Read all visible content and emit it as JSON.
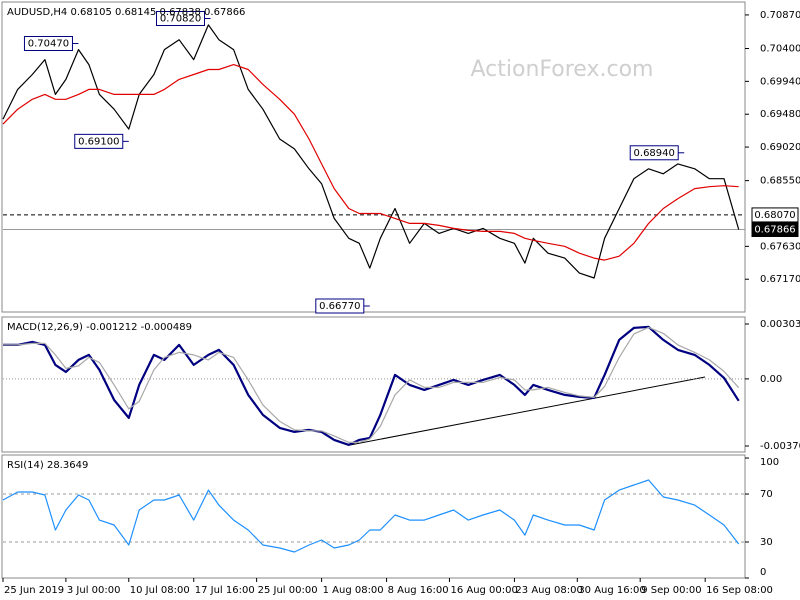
{
  "chart_data": [
    {
      "type": "line",
      "title": "AUDUSD,H4  0.68105 0.68145 0.67838 0.67866",
      "watermark": "ActionForex.com",
      "x": [
        0,
        7,
        14,
        20,
        25,
        30,
        36,
        41,
        46,
        53,
        60,
        65,
        72,
        77,
        84,
        91,
        98,
        103,
        110,
        117,
        124,
        132,
        139,
        146,
        152,
        158,
        165,
        170,
        175,
        180,
        187,
        194,
        201,
        208,
        215,
        222,
        229,
        237,
        244,
        249,
        253,
        260,
        268,
        275,
        282,
        287,
        294,
        301,
        308,
        315,
        322,
        330,
        337,
        344,
        351
      ],
      "xlim": [
        0,
        354
      ],
      "ylim": [
        0.66711,
        0.71037
      ],
      "yticks": [
        {
          "value": 0.7087,
          "label": "0.70870"
        },
        {
          "value": 0.704,
          "label": "0.70400"
        },
        {
          "value": 0.6994,
          "label": "0.69940"
        },
        {
          "value": 0.6948,
          "label": "0.69480"
        },
        {
          "value": 0.6902,
          "label": "0.69020"
        },
        {
          "value": 0.6855,
          "label": "0.68550"
        },
        {
          "value": 0.6763,
          "label": "0.67630"
        },
        {
          "value": 0.6717,
          "label": "0.67170"
        }
      ],
      "hlines": [
        {
          "value": 0.6807,
          "label": "0.68070",
          "style": "dashed"
        },
        {
          "value": 0.67866,
          "label": "0.67866",
          "style": "solid"
        }
      ],
      "annotations": [
        {
          "x": 36,
          "value": 0.7047,
          "label": "0.70470"
        },
        {
          "x": 99,
          "value": 0.7082,
          "label": "0.70820"
        },
        {
          "x": 60,
          "value": 0.691,
          "label": "0.69100"
        },
        {
          "x": 325,
          "value": 0.6894,
          "label": "0.68940"
        },
        {
          "x": 175,
          "value": 0.6677,
          "label": "0.66770"
        }
      ],
      "series": [
        {
          "color": "#000000",
          "values": [
            0.69411,
            0.69828,
            0.70036,
            0.70245,
            0.69758,
            0.69967,
            0.70384,
            0.70175,
            0.69758,
            0.6955,
            0.69272,
            0.69758,
            0.70036,
            0.70384,
            0.70523,
            0.70245,
            0.70731,
            0.70523,
            0.70384,
            0.69828,
            0.6955,
            0.69133,
            0.68994,
            0.68716,
            0.68507,
            0.68021,
            0.67743,
            0.67673,
            0.67326,
            0.67743,
            0.6816,
            0.67673,
            0.67951,
            0.67812,
            0.67882,
            0.67812,
            0.67882,
            0.67743,
            0.67673,
            0.67395,
            0.67743,
            0.67534,
            0.67465,
            0.67256,
            0.67187,
            0.67743,
            0.6816,
            0.68577,
            0.68716,
            0.68646,
            0.68785,
            0.68716,
            0.68577,
            0.68577,
            0.67866
          ]
        },
        {
          "color": "#e00000",
          "values": [
            0.69341,
            0.6955,
            0.69689,
            0.69758,
            0.69689,
            0.69689,
            0.69758,
            0.69828,
            0.69828,
            0.69758,
            0.69758,
            0.69758,
            0.69758,
            0.69828,
            0.69967,
            0.70036,
            0.70106,
            0.70106,
            0.70175,
            0.70106,
            0.69897,
            0.69689,
            0.6948,
            0.69133,
            0.68785,
            0.68438,
            0.6816,
            0.6809,
            0.6809,
            0.6809,
            0.68021,
            0.67951,
            0.67951,
            0.67923,
            0.67882,
            0.67854,
            0.6784,
            0.6784,
            0.67812,
            0.67743,
            0.67715,
            0.67673,
            0.67631,
            0.67534,
            0.67465,
            0.67437,
            0.67492,
            0.67673,
            0.67951,
            0.6816,
            0.68299,
            0.68438,
            0.68465,
            0.68479,
            0.68465
          ]
        }
      ]
    },
    {
      "type": "line",
      "title": "MACD(12,26,9) -0.001212 -0.000489",
      "ylim": [
        -0.004037,
        0.003362
      ],
      "yticks": [
        0.003031,
        {
          "value": 0,
          "label": "0.00"
        },
        -0.003706
      ],
      "levels": [
        0
      ],
      "series": [
        {
          "color": "#000080",
          "values": [
            0.001877,
            0.001877,
            0.002042,
            0.001877,
            0.000773,
            0.000386,
            0.001049,
            0.001325,
            0.000497,
            -0.001159,
            -0.002153,
            -0.000331,
            0.001325,
            0.001049,
            0.001877,
            0.000773,
            0.001325,
            0.001601,
            0.000773,
            -0.000883,
            -0.001987,
            -0.002705,
            -0.002926,
            -0.002815,
            -0.002926,
            -0.003367,
            -0.003643,
            -0.003367,
            -0.003257,
            -0.001987,
            0.000221,
            -0.000331,
            -0.000607,
            -0.000331,
            -5.5e-05,
            -0.000331,
            -5.5e-05,
            0.000221,
            -0.000331,
            -0.000883,
            -0.000331,
            -0.000607,
            -0.000883,
            -0.000994,
            -0.001049,
            0.000221,
            0.002153,
            0.002815,
            0.00287,
            0.002153,
            0.001601,
            0.001325,
            0.000773,
            5.5e-05,
            -0.001212
          ]
        },
        {
          "color": "#a8a8a8",
          "values": [
            0.001877,
            0.001877,
            0.00196,
            0.00196,
            0.001325,
            0.00058,
            0.000718,
            0.001187,
            0.000911,
            -0.000331,
            -0.001656,
            -0.001242,
            0.000497,
            0.001187,
            0.001463,
            0.001325,
            0.001049,
            0.001463,
            0.001187,
            -5.5e-05,
            -0.001435,
            -0.002346,
            -0.002816,
            -0.00287,
            -0.00287,
            -0.003147,
            -0.003505,
            -0.003505,
            -0.003312,
            -0.002622,
            -0.000883,
            -5.5e-05,
            -0.000469,
            -0.000469,
            -0.000193,
            -0.000193,
            -0.000193,
            8.3e-05,
            -5.5e-05,
            -0.000607,
            -0.000607,
            -0.000469,
            -0.000745,
            -0.000939,
            -0.001022,
            -0.000414,
            0.001187,
            0.002484,
            0.002843,
            0.002512,
            0.001877,
            0.001463,
            0.001049,
            0.000414,
            -0.000489
          ]
        }
      ]
    },
    {
      "type": "line",
      "title": "RSI(14) 28.3649",
      "ylim": [
        0,
        101.7
      ],
      "yticks": [
        100,
        70,
        30,
        0
      ],
      "levels": [
        70,
        30
      ],
      "xticks": [
        {
          "value": 0,
          "label": "25 Jun 2019"
        },
        {
          "value": 30,
          "label": "3 Jul 00:00"
        },
        {
          "value": 60,
          "label": "10 Jul 08:00"
        },
        {
          "value": 91,
          "label": "17 Jul 16:00"
        },
        {
          "value": 121,
          "label": "25 Jul 00:00"
        },
        {
          "value": 152,
          "label": "1 Aug 08:00"
        },
        {
          "value": 183,
          "label": "8 Aug 16:00"
        },
        {
          "value": 213,
          "label": "16 Aug 00:00"
        },
        {
          "value": 244,
          "label": "23 Aug 08:00"
        },
        {
          "value": 274,
          "label": "30 Aug 16:00"
        },
        {
          "value": 304,
          "label": "9 Sep 00:00"
        },
        {
          "value": 335,
          "label": "16 Sep 08:00"
        }
      ],
      "series": [
        {
          "color": "#1e90ff",
          "values": [
            65.0,
            71.7,
            71.7,
            69.2,
            40.0,
            56.7,
            69.2,
            65.0,
            48.3,
            44.2,
            27.5,
            56.7,
            65.0,
            65.0,
            69.2,
            48.3,
            73.3,
            60.8,
            48.3,
            40.0,
            27.5,
            25.0,
            21.7,
            27.5,
            31.7,
            25.0,
            27.5,
            31.7,
            40.0,
            40.0,
            52.5,
            48.3,
            48.3,
            52.5,
            56.7,
            48.3,
            52.5,
            56.7,
            48.3,
            35.8,
            52.5,
            48.3,
            44.2,
            44.2,
            40.0,
            65.0,
            73.3,
            77.5,
            81.7,
            67.5,
            65.0,
            60.8,
            52.5,
            44.2,
            28.3649
          ]
        }
      ]
    }
  ]
}
